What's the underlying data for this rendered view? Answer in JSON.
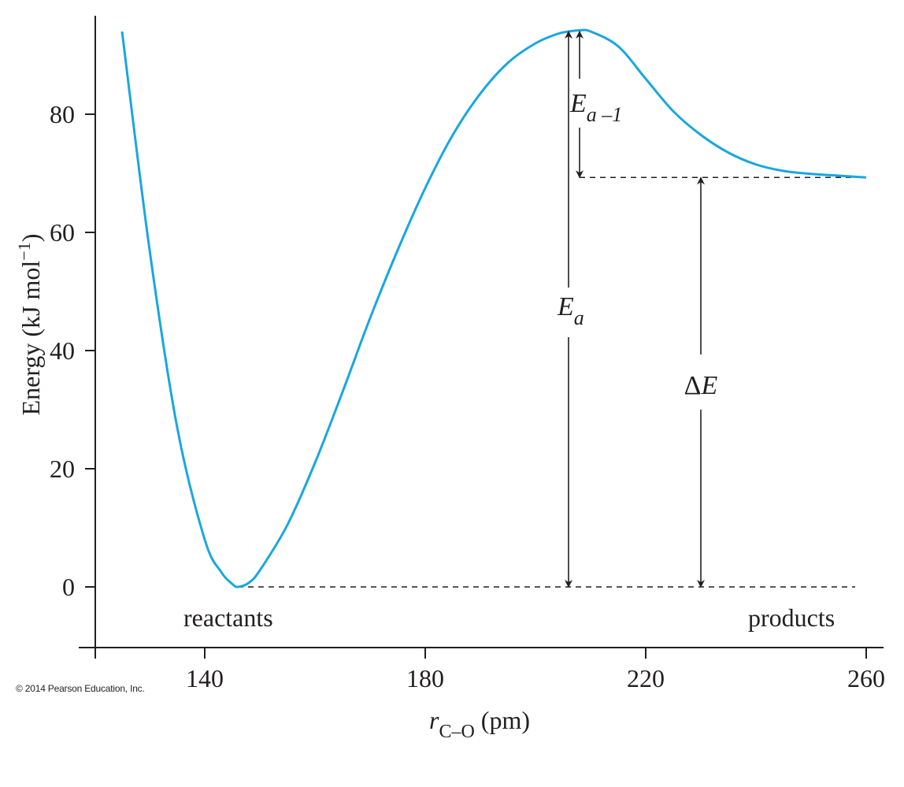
{
  "chart_data": {
    "type": "line",
    "title": "",
    "xlabel": {
      "var": "r",
      "sub": "C–O",
      "unit": "(pm)"
    },
    "ylabel": {
      "text": "Energy (kJ mol",
      "sup": "−1",
      "close": ")"
    },
    "xlim": [
      120,
      260
    ],
    "ylim": [
      -10,
      97
    ],
    "xticks": [
      140,
      180,
      220,
      260
    ],
    "yticks": [
      0,
      20,
      40,
      60,
      80
    ],
    "grid": false,
    "series": [
      {
        "color": "#18a7df",
        "x": [
          125,
          130,
          135,
          140,
          143,
          145,
          146,
          148,
          150,
          155,
          160,
          165,
          170,
          175,
          180,
          185,
          190,
          195,
          200,
          204,
          206,
          208,
          210,
          215,
          220,
          225,
          230,
          235,
          240,
          245,
          250,
          255,
          260
        ],
        "y": [
          94,
          57,
          27,
          8,
          2.5,
          0.5,
          0,
          0.7,
          2.8,
          10.5,
          21,
          33,
          45.5,
          57,
          67.5,
          76.5,
          83.5,
          88.7,
          92,
          93.6,
          94.0,
          94.2,
          94.0,
          91.5,
          86,
          80.5,
          76.5,
          73.5,
          71.5,
          70.4,
          69.9,
          69.6,
          69.3
        ]
      }
    ],
    "reference_lines": [
      {
        "y": 0,
        "x_from": 146,
        "x_to": 258,
        "style": "dashed"
      },
      {
        "y": 69.3,
        "x_from": 208,
        "x_to": 260,
        "style": "dashed"
      }
    ],
    "annotations": [
      {
        "name": "Ea",
        "main": "E",
        "sub": "a",
        "x": 206,
        "y_from": 0,
        "y_to": 94
      },
      {
        "name": "Ea-1",
        "main": "E",
        "sub": "a –1",
        "x": 208,
        "y_from": 69.3,
        "y_to": 94
      },
      {
        "name": "deltaE",
        "main": "ΔE",
        "x": 230,
        "y_from": 0,
        "y_to": 69.3
      }
    ],
    "region_labels": {
      "left": "reactants",
      "right": "products"
    }
  },
  "footer": {
    "copyright": "© 2014 Pearson Education, Inc."
  }
}
